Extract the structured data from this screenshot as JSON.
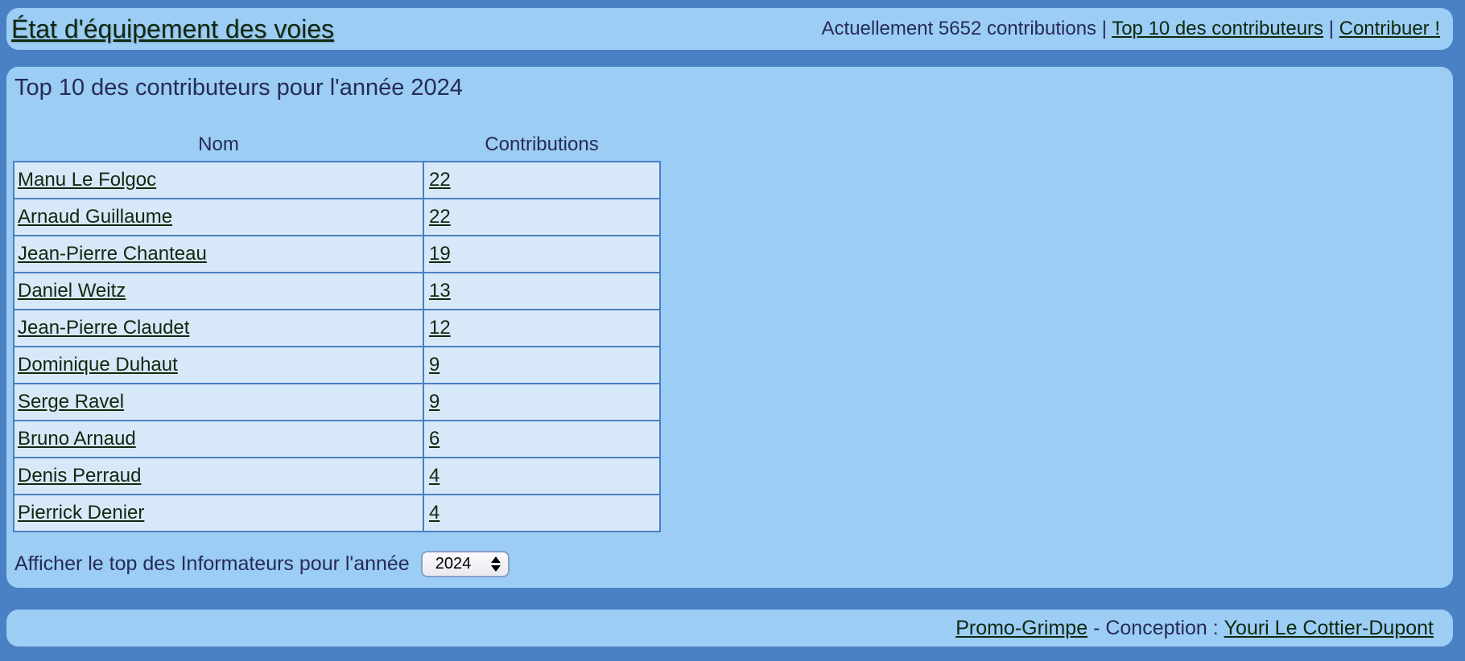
{
  "colors": {
    "page_background": "#4a81c4",
    "panel_background": "#9bcdf5",
    "cell_background": "#d7e9f9",
    "table_border": "#4a7fc1",
    "heading_text": "#272b56",
    "link_text": "#10280f"
  },
  "header": {
    "title": "État d'équipement des voies",
    "status": "Actuellement 5652 contributions",
    "separator": "|",
    "top10_link": "Top 10 des contributeurs",
    "contribute_link": "Contribuer !"
  },
  "main": {
    "heading": "Top 10 des contributeurs pour l'année 2024",
    "table": {
      "columns": [
        "Nom",
        "Contributions"
      ],
      "rows": [
        {
          "name": "Manu Le Folgoc",
          "contributions": "22"
        },
        {
          "name": "Arnaud Guillaume",
          "contributions": "22"
        },
        {
          "name": "Jean-Pierre Chanteau",
          "contributions": "19"
        },
        {
          "name": "Daniel Weitz",
          "contributions": "13"
        },
        {
          "name": "Jean-Pierre Claudet",
          "contributions": "12"
        },
        {
          "name": "Dominique Duhaut",
          "contributions": "9"
        },
        {
          "name": "Serge Ravel",
          "contributions": "9"
        },
        {
          "name": "Bruno Arnaud",
          "contributions": "6"
        },
        {
          "name": "Denis Perraud",
          "contributions": "4"
        },
        {
          "name": "Pierrick Denier",
          "contributions": "4"
        }
      ]
    },
    "year_selector": {
      "label": "Afficher le top des Informateurs pour l'année",
      "value": "2024"
    }
  },
  "footer": {
    "site_link": "Promo-Grimpe",
    "separator": " - Conception : ",
    "designer_link": "Youri Le Cottier-Dupont"
  }
}
